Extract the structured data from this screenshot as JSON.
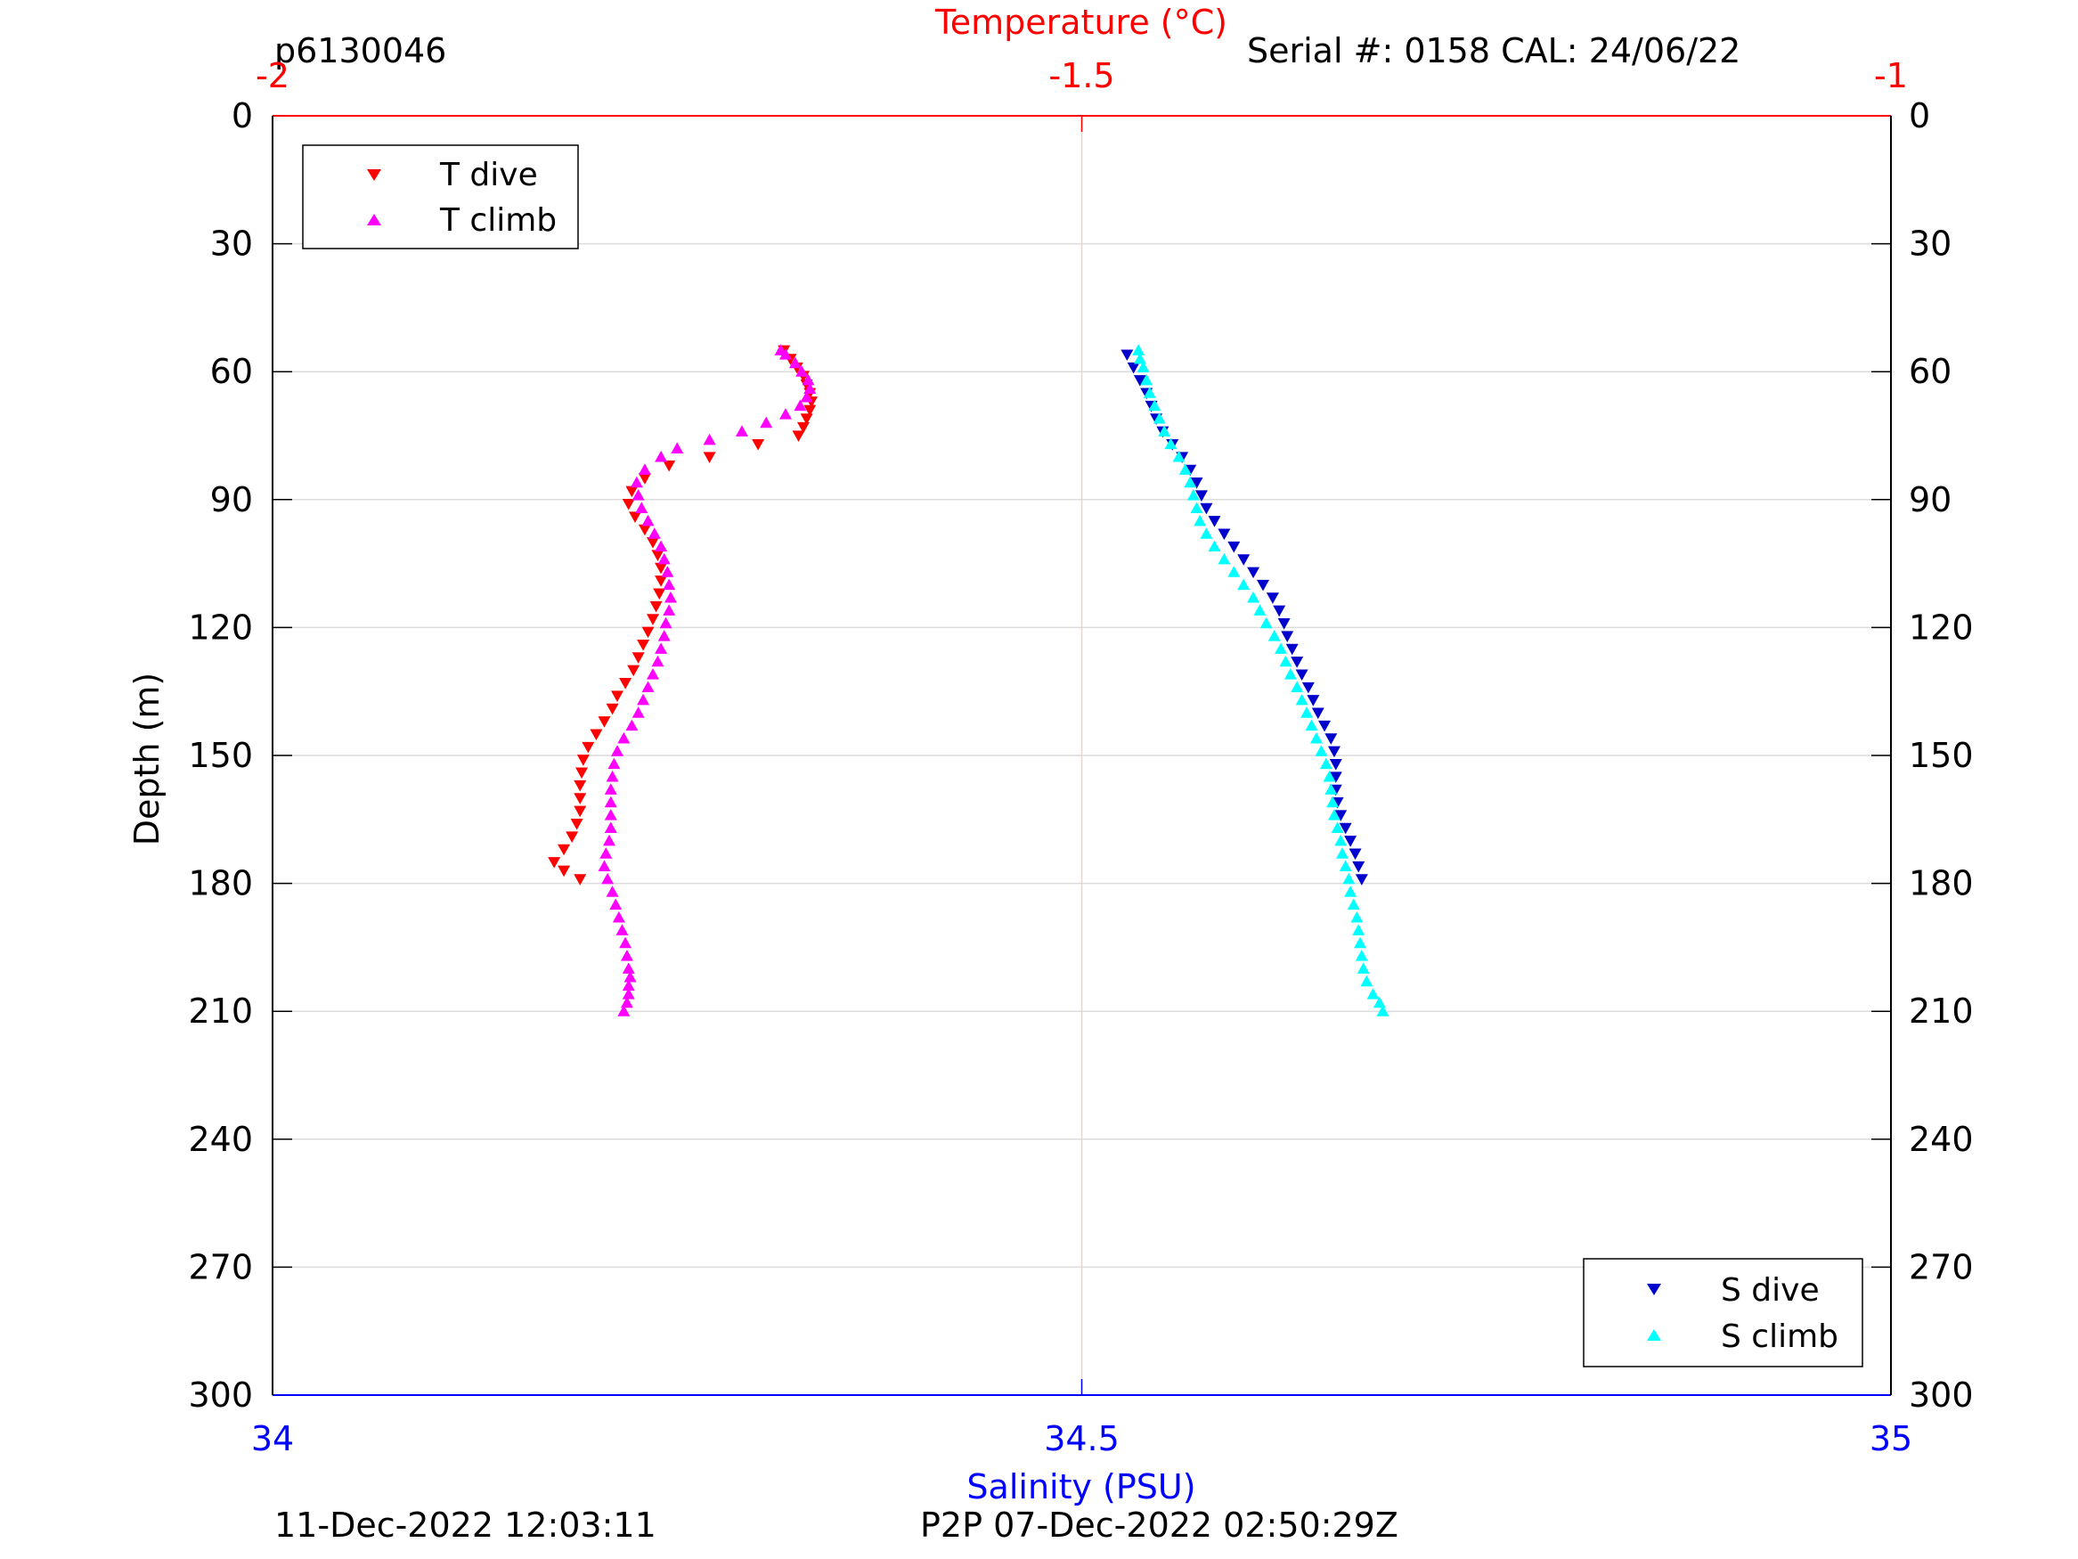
{
  "header": {
    "profile_id": "p6130046",
    "serial_cal": "Serial #: 0158  CAL: 24/06/22"
  },
  "footer": {
    "timestamp": "11-Dec-2022 12:03:11",
    "p2p": "P2P 07-Dec-2022 02:50:29Z"
  },
  "colors": {
    "temperature_axis": "#ff0000",
    "salinity_axis": "#0000ff",
    "t_dive": "#ff0000",
    "t_climb": "#ff00ff",
    "s_dive": "#0000cc",
    "s_climb": "#00ffff",
    "grid": "#dcdcdc",
    "centerline": "#e0d8d0"
  },
  "chart_data": {
    "type": "scatter",
    "ylabel": "Depth (m)",
    "ylim": [
      0,
      300
    ],
    "y_reversed": true,
    "yticks": [
      0,
      30,
      60,
      90,
      120,
      150,
      180,
      210,
      240,
      270,
      300
    ],
    "top_axis": {
      "label": "Temperature (°C)",
      "lim": [
        -2,
        -1
      ],
      "ticks": [
        -2,
        -1.5,
        -1
      ],
      "tick_labels": [
        "-2",
        "-1.5",
        "-1"
      ]
    },
    "bottom_axis": {
      "label": "Salinity (PSU)",
      "lim": [
        34,
        35
      ],
      "ticks": [
        34,
        34.5,
        35
      ],
      "tick_labels": [
        "34",
        "34.5",
        "35"
      ]
    },
    "grid": true,
    "legends": [
      {
        "position": "top-left",
        "entries": [
          "T dive",
          "T climb"
        ]
      },
      {
        "position": "bottom-right",
        "entries": [
          "S dive",
          "S climb"
        ]
      }
    ],
    "series": [
      {
        "name": "T dive",
        "axis": "temperature",
        "marker": "triangle-down",
        "points": [
          [
            -1.684,
            55
          ],
          [
            -1.68,
            57
          ],
          [
            -1.676,
            59
          ],
          [
            -1.672,
            61
          ],
          [
            -1.67,
            63
          ],
          [
            -1.668,
            65
          ],
          [
            -1.667,
            67
          ],
          [
            -1.668,
            69
          ],
          [
            -1.67,
            71
          ],
          [
            -1.672,
            73
          ],
          [
            -1.675,
            75
          ],
          [
            -1.7,
            77
          ],
          [
            -1.73,
            80
          ],
          [
            -1.755,
            82
          ],
          [
            -1.77,
            85
          ],
          [
            -1.778,
            88
          ],
          [
            -1.78,
            91
          ],
          [
            -1.776,
            94
          ],
          [
            -1.77,
            97
          ],
          [
            -1.765,
            100
          ],
          [
            -1.762,
            103
          ],
          [
            -1.76,
            106
          ],
          [
            -1.76,
            109
          ],
          [
            -1.761,
            112
          ],
          [
            -1.763,
            115
          ],
          [
            -1.765,
            118
          ],
          [
            -1.768,
            121
          ],
          [
            -1.771,
            124
          ],
          [
            -1.774,
            127
          ],
          [
            -1.777,
            130
          ],
          [
            -1.782,
            133
          ],
          [
            -1.787,
            136
          ],
          [
            -1.79,
            139
          ],
          [
            -1.795,
            142
          ],
          [
            -1.8,
            145
          ],
          [
            -1.805,
            148
          ],
          [
            -1.808,
            151
          ],
          [
            -1.809,
            154
          ],
          [
            -1.81,
            157
          ],
          [
            -1.81,
            160
          ],
          [
            -1.81,
            163
          ],
          [
            -1.812,
            166
          ],
          [
            -1.815,
            169
          ],
          [
            -1.82,
            172
          ],
          [
            -1.826,
            175
          ],
          [
            -1.82,
            177
          ],
          [
            -1.81,
            179
          ]
        ]
      },
      {
        "name": "T climb",
        "axis": "temperature",
        "marker": "triangle-up",
        "points": [
          [
            -1.783,
            210
          ],
          [
            -1.781,
            208
          ],
          [
            -1.78,
            206
          ],
          [
            -1.78,
            204
          ],
          [
            -1.779,
            202
          ],
          [
            -1.78,
            200
          ],
          [
            -1.781,
            197
          ],
          [
            -1.782,
            194
          ],
          [
            -1.784,
            191
          ],
          [
            -1.786,
            188
          ],
          [
            -1.788,
            185
          ],
          [
            -1.79,
            182
          ],
          [
            -1.793,
            179
          ],
          [
            -1.795,
            176
          ],
          [
            -1.794,
            173
          ],
          [
            -1.792,
            170
          ],
          [
            -1.791,
            167
          ],
          [
            -1.791,
            164
          ],
          [
            -1.791,
            161
          ],
          [
            -1.791,
            158
          ],
          [
            -1.79,
            155
          ],
          [
            -1.789,
            152
          ],
          [
            -1.787,
            149
          ],
          [
            -1.783,
            146
          ],
          [
            -1.778,
            143
          ],
          [
            -1.774,
            140
          ],
          [
            -1.771,
            137
          ],
          [
            -1.768,
            134
          ],
          [
            -1.765,
            131
          ],
          [
            -1.762,
            128
          ],
          [
            -1.76,
            125
          ],
          [
            -1.758,
            122
          ],
          [
            -1.757,
            119
          ],
          [
            -1.755,
            116
          ],
          [
            -1.754,
            113
          ],
          [
            -1.755,
            110
          ],
          [
            -1.756,
            107
          ],
          [
            -1.758,
            104
          ],
          [
            -1.76,
            101
          ],
          [
            -1.764,
            98
          ],
          [
            -1.768,
            95
          ],
          [
            -1.772,
            92
          ],
          [
            -1.774,
            89
          ],
          [
            -1.775,
            86
          ],
          [
            -1.77,
            83
          ],
          [
            -1.76,
            80
          ],
          [
            -1.75,
            78
          ],
          [
            -1.73,
            76
          ],
          [
            -1.71,
            74
          ],
          [
            -1.695,
            72
          ],
          [
            -1.683,
            70
          ],
          [
            -1.674,
            68
          ],
          [
            -1.67,
            66
          ],
          [
            -1.668,
            64
          ],
          [
            -1.669,
            62
          ],
          [
            -1.673,
            60
          ],
          [
            -1.677,
            58
          ],
          [
            -1.683,
            56
          ],
          [
            -1.686,
            55
          ]
        ]
      },
      {
        "name": "S dive",
        "axis": "salinity",
        "marker": "triangle-down",
        "points": [
          [
            34.528,
            56
          ],
          [
            34.532,
            59
          ],
          [
            34.536,
            62
          ],
          [
            34.54,
            65
          ],
          [
            34.543,
            68
          ],
          [
            34.546,
            71
          ],
          [
            34.55,
            74
          ],
          [
            34.556,
            77
          ],
          [
            34.562,
            80
          ],
          [
            34.567,
            83
          ],
          [
            34.571,
            86
          ],
          [
            34.574,
            89
          ],
          [
            34.577,
            92
          ],
          [
            34.582,
            95
          ],
          [
            34.588,
            98
          ],
          [
            34.594,
            101
          ],
          [
            34.6,
            104
          ],
          [
            34.606,
            107
          ],
          [
            34.612,
            110
          ],
          [
            34.618,
            113
          ],
          [
            34.622,
            116
          ],
          [
            34.625,
            119
          ],
          [
            34.627,
            122
          ],
          [
            34.63,
            125
          ],
          [
            34.633,
            128
          ],
          [
            34.636,
            131
          ],
          [
            34.64,
            134
          ],
          [
            34.643,
            137
          ],
          [
            34.646,
            140
          ],
          [
            34.65,
            143
          ],
          [
            34.654,
            146
          ],
          [
            34.656,
            149
          ],
          [
            34.657,
            152
          ],
          [
            34.657,
            155
          ],
          [
            34.657,
            158
          ],
          [
            34.658,
            161
          ],
          [
            34.66,
            164
          ],
          [
            34.663,
            167
          ],
          [
            34.666,
            170
          ],
          [
            34.669,
            173
          ],
          [
            34.671,
            176
          ],
          [
            34.673,
            179
          ]
        ]
      },
      {
        "name": "S climb",
        "axis": "salinity",
        "marker": "triangle-up",
        "points": [
          [
            34.686,
            210
          ],
          [
            34.684,
            208
          ],
          [
            34.68,
            206
          ],
          [
            34.676,
            203
          ],
          [
            34.674,
            200
          ],
          [
            34.673,
            197
          ],
          [
            34.672,
            194
          ],
          [
            34.671,
            191
          ],
          [
            34.67,
            188
          ],
          [
            34.668,
            185
          ],
          [
            34.666,
            182
          ],
          [
            34.665,
            179
          ],
          [
            34.663,
            176
          ],
          [
            34.661,
            173
          ],
          [
            34.66,
            170
          ],
          [
            34.658,
            167
          ],
          [
            34.656,
            164
          ],
          [
            34.655,
            161
          ],
          [
            34.654,
            158
          ],
          [
            34.653,
            155
          ],
          [
            34.651,
            152
          ],
          [
            34.648,
            149
          ],
          [
            34.645,
            146
          ],
          [
            34.642,
            143
          ],
          [
            34.639,
            140
          ],
          [
            34.636,
            137
          ],
          [
            34.633,
            134
          ],
          [
            34.629,
            131
          ],
          [
            34.626,
            128
          ],
          [
            34.623,
            125
          ],
          [
            34.619,
            122
          ],
          [
            34.614,
            119
          ],
          [
            34.61,
            116
          ],
          [
            34.606,
            113
          ],
          [
            34.6,
            110
          ],
          [
            34.594,
            107
          ],
          [
            34.588,
            104
          ],
          [
            34.582,
            101
          ],
          [
            34.577,
            98
          ],
          [
            34.573,
            95
          ],
          [
            34.571,
            92
          ],
          [
            34.569,
            89
          ],
          [
            34.567,
            86
          ],
          [
            34.564,
            83
          ],
          [
            34.56,
            80
          ],
          [
            34.555,
            77
          ],
          [
            34.551,
            74
          ],
          [
            34.548,
            71
          ],
          [
            34.545,
            68
          ],
          [
            34.542,
            65
          ],
          [
            34.54,
            62
          ],
          [
            34.538,
            59
          ],
          [
            34.536,
            57
          ],
          [
            34.535,
            55
          ]
        ]
      }
    ]
  }
}
